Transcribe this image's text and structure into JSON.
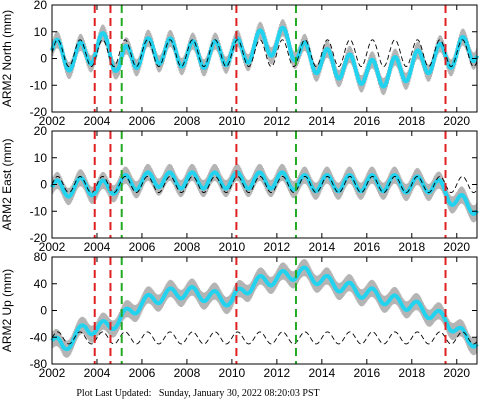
{
  "footer": {
    "label": "Plot Last Updated:",
    "timestamp": "Sunday, January 30, 2022 08:20:03 PST"
  },
  "colors": {
    "data": "#22d3f0",
    "error_bars": "#b4b4b4",
    "model": "#000000",
    "event_red": "#e02020",
    "event_green": "#22aa22"
  },
  "chart_data": [
    {
      "type": "line",
      "ylabel": "ARM2 North (mm)",
      "xlim": [
        2002,
        2020.9
      ],
      "ylim": [
        -20,
        20
      ],
      "x_ticks": [
        2002,
        2004,
        2006,
        2008,
        2010,
        2012,
        2014,
        2016,
        2018,
        2020
      ],
      "y_ticks": [
        -20,
        -10,
        0,
        10,
        20
      ],
      "vertical_lines": [
        {
          "x": 2003.9,
          "color": "red"
        },
        {
          "x": 2004.6,
          "color": "red"
        },
        {
          "x": 2005.1,
          "color": "green"
        },
        {
          "x": 2010.2,
          "color": "red"
        },
        {
          "x": 2012.85,
          "color": "green"
        },
        {
          "x": 2019.5,
          "color": "red"
        }
      ],
      "seasonal_model": {
        "amplitude": 5,
        "period_years": 1,
        "offset": 2
      },
      "series": [
        {
          "role": "observed",
          "x": [
            2002,
            2002.5,
            2003,
            2003.5,
            2004,
            2004.5,
            2005,
            2005.5,
            2006,
            2006.5,
            2007,
            2007.5,
            2008,
            2008.5,
            2009,
            2009.5,
            2010,
            2010.5,
            2011,
            2011.5,
            2012,
            2012.5,
            2013,
            2013.5,
            2014,
            2014.5,
            2015,
            2015.5,
            2016,
            2016.5,
            2017,
            2017.5,
            2018,
            2018.5,
            2019,
            2019.5,
            2020,
            2020.5
          ],
          "y": [
            3,
            1,
            0,
            2,
            4,
            5,
            -3,
            2,
            1,
            4,
            2,
            3,
            1,
            2,
            1,
            2,
            3,
            2,
            5,
            6,
            6,
            7,
            2,
            0,
            -1,
            -2,
            -3,
            -4,
            -5,
            -6,
            -5,
            -4,
            -3,
            -1,
            0,
            1,
            2,
            4
          ]
        }
      ]
    },
    {
      "type": "line",
      "ylabel": "ARM2 East (mm)",
      "xlim": [
        2002,
        2020.9
      ],
      "ylim": [
        -20,
        20
      ],
      "x_ticks": [
        2002,
        2004,
        2006,
        2008,
        2010,
        2012,
        2014,
        2016,
        2018,
        2020
      ],
      "y_ticks": [
        -20,
        -10,
        0,
        10,
        20
      ],
      "vertical_lines": [
        {
          "x": 2003.9,
          "color": "red"
        },
        {
          "x": 2004.6,
          "color": "red"
        },
        {
          "x": 2005.1,
          "color": "green"
        },
        {
          "x": 2010.2,
          "color": "red"
        },
        {
          "x": 2012.85,
          "color": "green"
        },
        {
          "x": 2019.5,
          "color": "red"
        }
      ],
      "seasonal_model": {
        "amplitude": 3,
        "period_years": 1,
        "offset": 0
      },
      "series": [
        {
          "role": "observed",
          "x": [
            2002,
            2002.5,
            2003,
            2003.5,
            2004,
            2004.5,
            2005,
            2005.5,
            2006,
            2006.5,
            2007,
            2007.5,
            2008,
            2008.5,
            2009,
            2009.5,
            2010,
            2010.5,
            2011,
            2011.5,
            2012,
            2012.5,
            2013,
            2013.5,
            2014,
            2014.5,
            2015,
            2015.5,
            2016,
            2016.5,
            2017,
            2017.5,
            2018,
            2018.5,
            2019,
            2019.5,
            2020,
            2020.5
          ],
          "y": [
            -1,
            -2,
            -1,
            0,
            -2,
            -1,
            0,
            1,
            1,
            2,
            2,
            1,
            2,
            1,
            2,
            1,
            2,
            1,
            2,
            1,
            2,
            1,
            1,
            0,
            1,
            0,
            1,
            0,
            1,
            0,
            1,
            0,
            0,
            0,
            0,
            -3,
            -6,
            -8
          ]
        }
      ]
    },
    {
      "type": "line",
      "ylabel": "ARM2 Up (mm)",
      "xlim": [
        2002,
        2020.9
      ],
      "ylim": [
        -80,
        80
      ],
      "x_ticks": [
        2002,
        2004,
        2006,
        2008,
        2010,
        2012,
        2014,
        2016,
        2018,
        2020
      ],
      "y_ticks": [
        -80,
        -40,
        0,
        40,
        80
      ],
      "vertical_lines": [
        {
          "x": 2003.9,
          "color": "red"
        },
        {
          "x": 2004.6,
          "color": "red"
        },
        {
          "x": 2005.1,
          "color": "green"
        },
        {
          "x": 2010.2,
          "color": "red"
        },
        {
          "x": 2012.85,
          "color": "green"
        },
        {
          "x": 2019.5,
          "color": "red"
        }
      ],
      "seasonal_model": {
        "amplitude": 9,
        "period_years": 1,
        "offset": -41
      },
      "series": [
        {
          "role": "observed",
          "x": [
            2002,
            2002.5,
            2003,
            2003.5,
            2004,
            2004.5,
            2005,
            2005.5,
            2006,
            2006.5,
            2007,
            2007.5,
            2008,
            2008.5,
            2009,
            2009.5,
            2010,
            2010.5,
            2011,
            2011.5,
            2012,
            2012.5,
            2013,
            2013.5,
            2014,
            2014.5,
            2015,
            2015.5,
            2016,
            2016.5,
            2017,
            2017.5,
            2018,
            2018.5,
            2019,
            2019.5,
            2020,
            2020.5
          ],
          "y": [
            -45,
            -55,
            -40,
            -25,
            -28,
            -22,
            -15,
            0,
            10,
            18,
            22,
            26,
            28,
            24,
            22,
            18,
            15,
            30,
            40,
            45,
            48,
            52,
            58,
            52,
            45,
            40,
            35,
            30,
            26,
            22,
            15,
            12,
            8,
            0,
            -5,
            -15,
            -28,
            -45
          ]
        }
      ]
    }
  ]
}
